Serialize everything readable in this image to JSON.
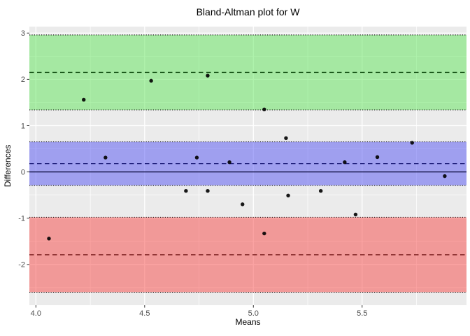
{
  "chart_data": {
    "type": "scatter",
    "title": "Bland-Altman plot for W",
    "xlabel": "Means",
    "ylabel": "Differences",
    "xlim": [
      3.97,
      5.98
    ],
    "ylim": [
      -2.88,
      3.14
    ],
    "x_ticks": [
      "4.0",
      "4.5",
      "5.0",
      "5.5"
    ],
    "x_tick_values": [
      4.0,
      4.5,
      5.0,
      5.5
    ],
    "y_ticks": [
      "-2",
      "-1",
      "0",
      "1",
      "2",
      "3"
    ],
    "y_tick_values": [
      -2,
      -1,
      0,
      1,
      2,
      3
    ],
    "grid": true,
    "legend": false,
    "statistics": {
      "bias": 0.18,
      "bias_ci": [
        -0.29,
        0.65
      ],
      "upper_loa": 2.15,
      "upper_loa_ci": [
        1.34,
        2.96
      ],
      "lower_loa": -1.79,
      "lower_loa_ci": [
        -2.6,
        -0.98
      ],
      "zero_line": 0
    },
    "bands": [
      {
        "name": "upper-loa-ci-band",
        "from": 1.34,
        "to": 2.96,
        "center": 2.15,
        "fill": "#5fe559",
        "opacity": 0.5,
        "center_color": "#134f13",
        "edge_color": "#0a0a0a"
      },
      {
        "name": "bias-ci-band",
        "from": -0.29,
        "to": 0.65,
        "center": 0.18,
        "fill": "#5353f3",
        "opacity": 0.5,
        "center_color": "#1c1c78",
        "edge_color": "#0a0a0a"
      },
      {
        "name": "lower-loa-ci-band",
        "from": -2.6,
        "to": -0.98,
        "center": -1.79,
        "fill": "#f74745",
        "opacity": 0.5,
        "center_color": "#701414",
        "edge_color": "#0a0a0a"
      }
    ],
    "zero_line_color": "#000030",
    "points": [
      [
        4.06,
        -1.44
      ],
      [
        4.22,
        1.56
      ],
      [
        4.32,
        0.31
      ],
      [
        4.53,
        1.97
      ],
      [
        4.69,
        -0.41
      ],
      [
        4.74,
        0.31
      ],
      [
        4.79,
        2.08
      ],
      [
        4.79,
        -0.41
      ],
      [
        4.89,
        0.21
      ],
      [
        4.95,
        -0.7
      ],
      [
        5.05,
        1.35
      ],
      [
        5.05,
        -1.33
      ],
      [
        5.15,
        0.73
      ],
      [
        5.16,
        -0.51
      ],
      [
        5.31,
        -0.41
      ],
      [
        5.42,
        0.21
      ],
      [
        5.47,
        -0.92
      ],
      [
        5.57,
        0.32
      ],
      [
        5.73,
        0.63
      ],
      [
        5.88,
        -0.09
      ]
    ],
    "point_color": "#000000",
    "point_opacity": 0.9,
    "panel_bg": "#ebebeb",
    "grid_color": "#ffffff",
    "tick_mark_color": "#333333"
  }
}
